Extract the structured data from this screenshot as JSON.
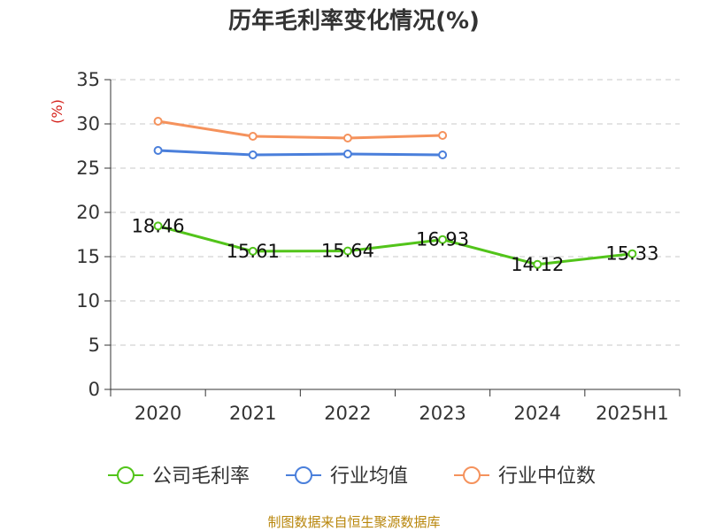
{
  "chart_data": {
    "type": "line",
    "title": "历年毛利率变化情况(%)",
    "unit_label": "(%)",
    "categories": [
      "2020",
      "2021",
      "2022",
      "2023",
      "2024",
      "2025H1"
    ],
    "ylim": [
      0,
      35
    ],
    "yticks": [
      0,
      5,
      10,
      15,
      20,
      25,
      30,
      35
    ],
    "grid": true,
    "legend_position": "bottom",
    "series": [
      {
        "name": "公司毛利率",
        "color": "#52c41a",
        "values": [
          18.46,
          15.61,
          15.64,
          16.93,
          14.12,
          15.33
        ],
        "data_labels": [
          "18.46",
          "15.61",
          "15.64",
          "16.93",
          "14.12",
          "15.33"
        ]
      },
      {
        "name": "行业均值",
        "color": "#4a7fdb",
        "values": [
          27.0,
          26.5,
          26.6,
          26.5,
          null,
          null
        ]
      },
      {
        "name": "行业中位数",
        "color": "#f5925c",
        "values": [
          30.3,
          28.6,
          28.4,
          28.7,
          null,
          null
        ]
      }
    ]
  },
  "footer": {
    "source": "制图数据来自恒生聚源数据库"
  }
}
